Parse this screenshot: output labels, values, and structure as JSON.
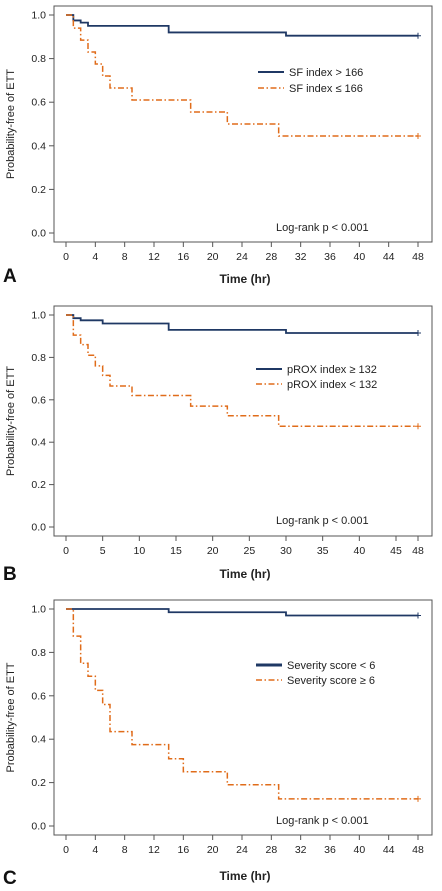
{
  "colors": {
    "navy": "#1f3864",
    "orange": "#e06c1a",
    "axis": "#555555"
  },
  "chart_data": [
    {
      "type": "line",
      "subtype": "kaplan-meier",
      "panel": "A",
      "ylabel": "Probability-free of ETT",
      "xlabel": "Time (hr)",
      "xlim": [
        0,
        48
      ],
      "ylim": [
        0,
        1
      ],
      "xticks": [
        0,
        4,
        8,
        12,
        16,
        20,
        24,
        28,
        32,
        36,
        40,
        44,
        48
      ],
      "yticks": [
        "0.0",
        "0.2",
        "0.4",
        "0.6",
        "0.8",
        "1.0"
      ],
      "annotation": "Log-rank p < 0.001",
      "legend_position": "right",
      "series": [
        {
          "name": "SF index > 166",
          "style": "solid",
          "color": "#1f3864",
          "x": [
            0,
            1,
            2,
            3,
            14,
            30,
            48
          ],
          "y": [
            1.0,
            0.975,
            0.965,
            0.95,
            0.92,
            0.905,
            0.905
          ]
        },
        {
          "name": "SF index ≤ 166",
          "style": "dashdot",
          "color": "#e06c1a",
          "x": [
            0,
            1,
            2,
            3,
            4,
            5,
            6,
            9,
            14,
            17,
            22,
            29,
            48
          ],
          "y": [
            1.0,
            0.94,
            0.885,
            0.83,
            0.775,
            0.72,
            0.665,
            0.61,
            0.61,
            0.555,
            0.5,
            0.445,
            0.445
          ]
        }
      ]
    },
    {
      "type": "line",
      "subtype": "kaplan-meier",
      "panel": "B",
      "ylabel": "Probability-free of ETT",
      "xlabel": "Time (hr)",
      "xlim": [
        0,
        48
      ],
      "ylim": [
        0,
        1
      ],
      "xticks": [
        0,
        5,
        10,
        15,
        20,
        25,
        30,
        35,
        40,
        45,
        48
      ],
      "yticks": [
        "0.0",
        "0.2",
        "0.4",
        "0.6",
        "0.8",
        "1.0"
      ],
      "annotation": "Log-rank p < 0.001",
      "legend_position": "right",
      "series": [
        {
          "name": "pROX index ≥ 132",
          "style": "solid",
          "color": "#1f3864",
          "x": [
            0,
            1,
            2,
            5,
            14,
            30,
            48
          ],
          "y": [
            1.0,
            0.985,
            0.975,
            0.96,
            0.93,
            0.915,
            0.915
          ]
        },
        {
          "name": "pROX index < 132",
          "style": "dashdot",
          "color": "#e06c1a",
          "x": [
            0,
            1,
            2,
            3,
            4,
            5,
            6,
            9,
            14,
            17,
            22,
            29,
            48
          ],
          "y": [
            1.0,
            0.905,
            0.86,
            0.81,
            0.76,
            0.715,
            0.665,
            0.62,
            0.62,
            0.57,
            0.525,
            0.475,
            0.475
          ]
        }
      ]
    },
    {
      "type": "line",
      "subtype": "kaplan-meier",
      "panel": "C",
      "ylabel": "Probability-free of ETT",
      "xlabel": "Time (hr)",
      "xlim": [
        0,
        48
      ],
      "ylim": [
        0,
        1
      ],
      "xticks": [
        0,
        4,
        8,
        12,
        16,
        20,
        24,
        28,
        32,
        36,
        40,
        44,
        48
      ],
      "yticks": [
        "0.0",
        "0.2",
        "0.4",
        "0.6",
        "0.8",
        "1.0"
      ],
      "annotation": "Log-rank p < 0.001",
      "legend_position": "right",
      "series": [
        {
          "name": "Severity score < 6",
          "style": "solid",
          "color": "#1f3864",
          "x": [
            0,
            14,
            30,
            48
          ],
          "y": [
            1.0,
            0.985,
            0.97,
            0.97
          ]
        },
        {
          "name": "Severity score ≥ 6",
          "style": "dashdot",
          "color": "#e06c1a",
          "x": [
            0,
            1,
            2,
            3,
            4,
            5,
            6,
            9,
            14,
            16,
            22,
            29,
            48
          ],
          "y": [
            1.0,
            0.875,
            0.75,
            0.69,
            0.625,
            0.56,
            0.435,
            0.375,
            0.31,
            0.25,
            0.19,
            0.125,
            0.125
          ]
        }
      ]
    }
  ]
}
